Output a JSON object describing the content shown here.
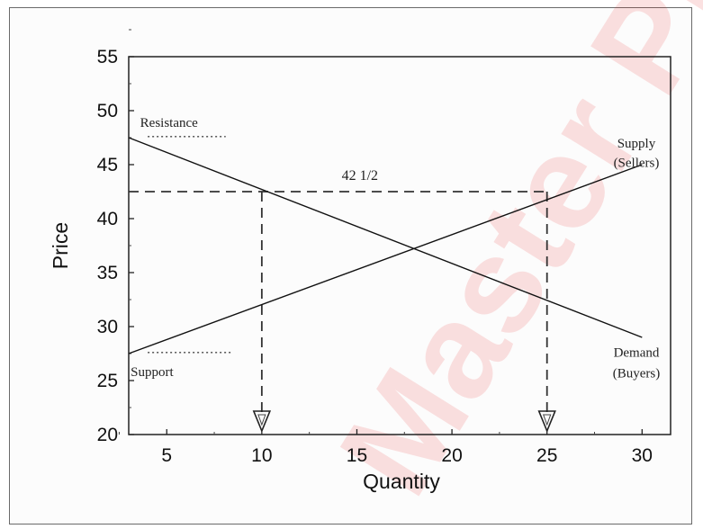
{
  "chart_data": {
    "type": "line",
    "xlabel": "Quantity",
    "ylabel": "Price",
    "xlim": [
      3,
      31.5
    ],
    "ylim": [
      20,
      55
    ],
    "xticks": [
      5,
      10,
      15,
      20,
      25,
      30
    ],
    "yticks": [
      20,
      25,
      30,
      35,
      40,
      45,
      50,
      55
    ],
    "grid": false,
    "series": [
      {
        "name": "Supply (Sellers)",
        "x": [
          3,
          30
        ],
        "y": [
          27.5,
          45
        ]
      },
      {
        "name": "Demand (Buyers)",
        "x": [
          3,
          30
        ],
        "y": [
          47.5,
          29
        ]
      }
    ],
    "levels": [
      {
        "label": "Resistance",
        "y": 47.5
      },
      {
        "label": "Support",
        "y": 27.5
      }
    ],
    "reference": {
      "label": "42 1/2",
      "price": 42.5,
      "quantities": [
        10,
        25
      ]
    },
    "labels": {
      "supply_line1": "Supply",
      "supply_line2": "(Sellers)",
      "demand_line1": "Demand",
      "demand_line2": "(Buyers)",
      "resistance": "Resistance",
      "support": "Support",
      "level": "42 1/2"
    }
  },
  "watermark": "Master PL"
}
